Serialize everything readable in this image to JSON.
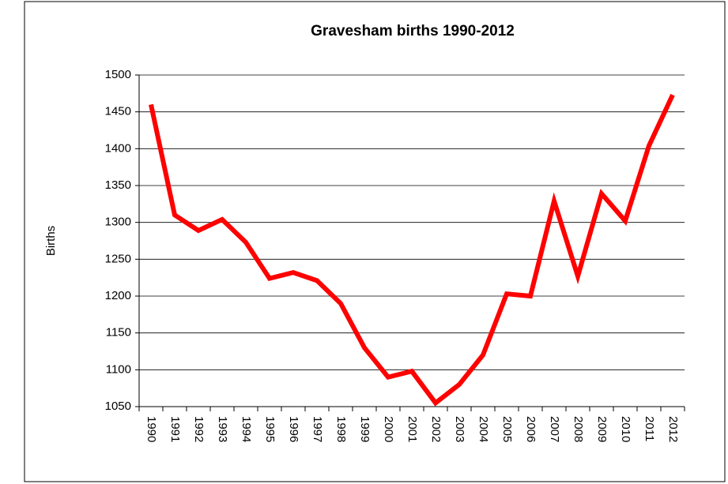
{
  "chart_data": {
    "type": "line",
    "title": "Gravesham births 1990-2012",
    "y_label": "Births",
    "categories": [
      "1990",
      "1991",
      "1992",
      "1993",
      "1994",
      "1995",
      "1996",
      "1997",
      "1998",
      "1999",
      "2000",
      "2001",
      "2002",
      "2003",
      "2004",
      "2005",
      "2006",
      "2007",
      "2008",
      "2009",
      "2010",
      "2011",
      "2012"
    ],
    "series": [
      {
        "name": "Births",
        "color": "#ff0000",
        "values": [
          1460,
          1310,
          1289,
          1304,
          1273,
          1224,
          1232,
          1221,
          1190,
          1130,
          1090,
          1098,
          1055,
          1080,
          1120,
          1203,
          1200,
          1329,
          1227,
          1339,
          1302,
          1404,
          1473
        ]
      }
    ],
    "ylim": [
      1050,
      1500
    ],
    "yticks": [
      1050,
      1100,
      1150,
      1200,
      1250,
      1300,
      1350,
      1400,
      1450,
      1500
    ],
    "grid": true
  }
}
